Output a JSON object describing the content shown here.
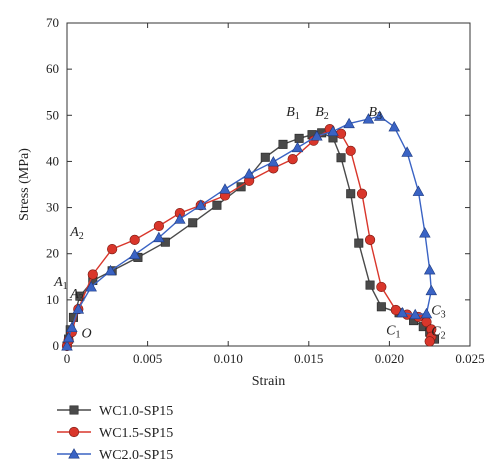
{
  "chart_data": {
    "type": "line",
    "xlabel": "Strain",
    "ylabel": "Stress (MPa)",
    "xlim": [
      0,
      0.025
    ],
    "ylim": [
      0,
      70
    ],
    "x_ticks": [
      "0",
      "0.005",
      "0.010",
      "0.015",
      "0.020",
      "0.025"
    ],
    "y_ticks": [
      "0",
      "10",
      "20",
      "30",
      "40",
      "50",
      "60",
      "70"
    ],
    "legend_position": "bottom-left, below plot",
    "series": [
      {
        "name": "WC1.0-SP15",
        "color": "#4a4a4a",
        "marker": "square",
        "points": [
          [
            0,
            0
          ],
          [
            0.0001,
            1.5
          ],
          [
            0.0002,
            3.5
          ],
          [
            0.0004,
            6.2
          ],
          [
            0.0008,
            10.8
          ],
          [
            0.0016,
            14.2
          ],
          [
            0.0028,
            16.3
          ],
          [
            0.0044,
            19.2
          ],
          [
            0.0061,
            22.5
          ],
          [
            0.0078,
            26.7
          ],
          [
            0.0093,
            30.5
          ],
          [
            0.0108,
            34.5
          ],
          [
            0.0123,
            40.9
          ],
          [
            0.0134,
            43.7
          ],
          [
            0.0144,
            45.0
          ],
          [
            0.0152,
            45.8
          ],
          [
            0.0158,
            46.2
          ],
          [
            0.0165,
            45.1
          ],
          [
            0.017,
            40.8
          ],
          [
            0.0176,
            33.0
          ],
          [
            0.0181,
            22.3
          ],
          [
            0.0188,
            13.2
          ],
          [
            0.0195,
            8.5
          ],
          [
            0.0206,
            7.2
          ],
          [
            0.0215,
            5.5
          ],
          [
            0.0221,
            4.2
          ],
          [
            0.0225,
            3.0
          ],
          [
            0.0228,
            1.5
          ]
        ]
      },
      {
        "name": "WC1.5-SP15",
        "color": "#d9362b",
        "marker": "circle",
        "points": [
          [
            0,
            0
          ],
          [
            0.0001,
            1.2
          ],
          [
            0.0003,
            3.0
          ],
          [
            0.0007,
            8.0
          ],
          [
            0.0016,
            15.5
          ],
          [
            0.0028,
            21.0
          ],
          [
            0.0042,
            23.0
          ],
          [
            0.0057,
            26.0
          ],
          [
            0.007,
            28.8
          ],
          [
            0.0083,
            30.5
          ],
          [
            0.0098,
            32.6
          ],
          [
            0.0113,
            35.8
          ],
          [
            0.0128,
            38.5
          ],
          [
            0.014,
            40.5
          ],
          [
            0.0153,
            44.5
          ],
          [
            0.0163,
            47.0
          ],
          [
            0.017,
            46.0
          ],
          [
            0.0176,
            42.3
          ],
          [
            0.0183,
            33.0
          ],
          [
            0.0188,
            23.0
          ],
          [
            0.0195,
            12.8
          ],
          [
            0.0204,
            7.8
          ],
          [
            0.0211,
            6.8
          ],
          [
            0.0218,
            6.3
          ],
          [
            0.0223,
            5.2
          ],
          [
            0.0226,
            3.6
          ],
          [
            0.0226,
            2.0
          ],
          [
            0.0225,
            1.0
          ]
        ]
      },
      {
        "name": "WC2.0-SP15",
        "color": "#3a63c4",
        "marker": "triangle",
        "points": [
          [
            0,
            0
          ],
          [
            0.0001,
            1.8
          ],
          [
            0.0003,
            4.0
          ],
          [
            0.0007,
            8.0
          ],
          [
            0.0015,
            12.8
          ],
          [
            0.0027,
            16.3
          ],
          [
            0.0042,
            19.8
          ],
          [
            0.0057,
            23.5
          ],
          [
            0.007,
            27.5
          ],
          [
            0.0083,
            30.5
          ],
          [
            0.0098,
            34.0
          ],
          [
            0.0113,
            37.3
          ],
          [
            0.0128,
            39.9
          ],
          [
            0.0143,
            43.0
          ],
          [
            0.0155,
            45.5
          ],
          [
            0.0165,
            46.5
          ],
          [
            0.0175,
            48.2
          ],
          [
            0.0187,
            49.2
          ],
          [
            0.0194,
            49.8
          ],
          [
            0.0203,
            47.5
          ],
          [
            0.0211,
            42.0
          ],
          [
            0.0218,
            33.5
          ],
          [
            0.0222,
            24.5
          ],
          [
            0.0225,
            16.5
          ],
          [
            0.0226,
            12.0
          ],
          [
            0.0223,
            7.0
          ],
          [
            0.0216,
            6.8
          ],
          [
            0.0208,
            7.2
          ]
        ]
      }
    ],
    "annotations": [
      {
        "label": "O",
        "sub": "",
        "x": 0.0009,
        "y": 1.8
      },
      {
        "label": "A",
        "sub": "1",
        "x": -0.0008,
        "y": 13.0
      },
      {
        "label": "A",
        "sub": "2",
        "x": 0.0002,
        "y": 23.8
      },
      {
        "label": "A",
        "sub": "3",
        "x": 0.0002,
        "y": 10.4
      },
      {
        "label": "B",
        "sub": "1",
        "x": 0.0136,
        "y": 49.8
      },
      {
        "label": "B",
        "sub": "2",
        "x": 0.0154,
        "y": 49.8
      },
      {
        "label": "B",
        "sub": "3",
        "x": 0.0187,
        "y": 49.8
      },
      {
        "label": "C",
        "sub": "1",
        "x": 0.0198,
        "y": 2.5
      },
      {
        "label": "C",
        "sub": "2",
        "x": 0.0226,
        "y": 2.3
      },
      {
        "label": "C",
        "sub": "3",
        "x": 0.0226,
        "y": 6.8
      }
    ]
  }
}
